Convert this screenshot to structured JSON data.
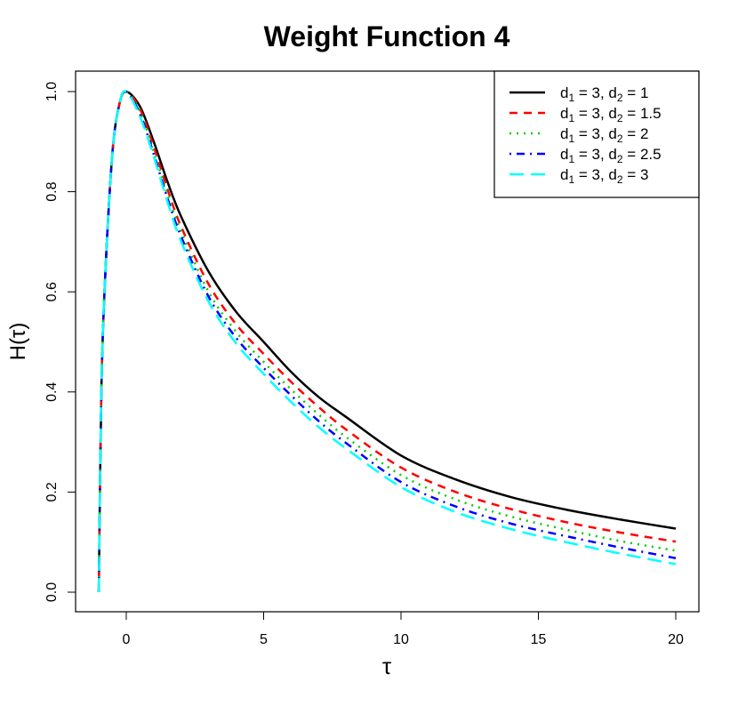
{
  "chart_data": {
    "type": "line",
    "title": "Weight Function 4",
    "xlabel": "τ",
    "ylabel": "H(τ)",
    "xlim": [
      -1.9,
      20.9
    ],
    "ylim": [
      -0.04,
      1.04
    ],
    "xticks": [
      0,
      5,
      10,
      15,
      20
    ],
    "yticks": [
      0.0,
      0.2,
      0.4,
      0.6,
      0.8,
      1.0
    ],
    "ytick_labels": [
      "0.0",
      "0.2",
      "0.4",
      "0.6",
      "0.8",
      "1.0"
    ],
    "grid": false,
    "legend_position": "top-right",
    "x": [
      -1,
      -0.9,
      -0.75,
      -0.5,
      -0.25,
      0,
      0.5,
      1,
      1.5,
      2,
      3,
      4,
      5,
      6,
      7,
      8,
      10,
      12,
      14,
      16,
      18,
      20
    ],
    "series": [
      {
        "name": "d1 = 3, d2 = 1",
        "d1": 3,
        "d2": 1,
        "color": "#000000",
        "dash": "solid",
        "values": [
          0,
          0.42,
          0.65,
          0.88,
          0.975,
          1.0,
          0.97,
          0.9,
          0.82,
          0.75,
          0.64,
          0.56,
          0.5,
          0.44,
          0.39,
          0.35,
          0.273,
          0.225,
          0.19,
          0.165,
          0.145,
          0.127
        ]
      },
      {
        "name": "d1 = 3, d2 = 1.5",
        "d1": 3,
        "d2": 1.5,
        "color": "#ff0000",
        "dash": "dashed",
        "values": [
          0,
          0.42,
          0.65,
          0.88,
          0.975,
          1.0,
          0.965,
          0.89,
          0.805,
          0.73,
          0.615,
          0.535,
          0.476,
          0.42,
          0.37,
          0.325,
          0.249,
          0.2,
          0.166,
          0.14,
          0.119,
          0.101
        ]
      },
      {
        "name": "d1 = 3, d2 = 2",
        "d1": 3,
        "d2": 2,
        "color": "#00cd00",
        "dash": "dotted",
        "values": [
          0,
          0.42,
          0.65,
          0.88,
          0.975,
          1.0,
          0.96,
          0.88,
          0.795,
          0.72,
          0.6,
          0.52,
          0.46,
          0.405,
          0.355,
          0.31,
          0.234,
          0.185,
          0.151,
          0.125,
          0.102,
          0.083
        ]
      },
      {
        "name": "d1 = 3, d2 = 2.5",
        "d1": 3,
        "d2": 2.5,
        "color": "#0000ff",
        "dash": "dotdash",
        "values": [
          0,
          0.42,
          0.65,
          0.88,
          0.975,
          1.0,
          0.955,
          0.875,
          0.787,
          0.71,
          0.59,
          0.508,
          0.448,
          0.393,
          0.342,
          0.298,
          0.22,
          0.171,
          0.137,
          0.112,
          0.089,
          0.068
        ]
      },
      {
        "name": "d1 = 3, d2 = 3",
        "d1": 3,
        "d2": 3,
        "color": "#00ffff",
        "dash": "longdash",
        "values": [
          0,
          0.42,
          0.65,
          0.88,
          0.975,
          1.0,
          0.95,
          0.87,
          0.78,
          0.7,
          0.58,
          0.497,
          0.436,
          0.38,
          0.33,
          0.287,
          0.21,
          0.16,
          0.126,
          0.1,
          0.077,
          0.056
        ]
      }
    ]
  },
  "legend": {
    "items": [
      {
        "d1": "3",
        "d2": "1"
      },
      {
        "d1": "3",
        "d2": "1.5"
      },
      {
        "d1": "3",
        "d2": "2"
      },
      {
        "d1": "3",
        "d2": "2.5"
      },
      {
        "d1": "3",
        "d2": "3"
      }
    ]
  }
}
